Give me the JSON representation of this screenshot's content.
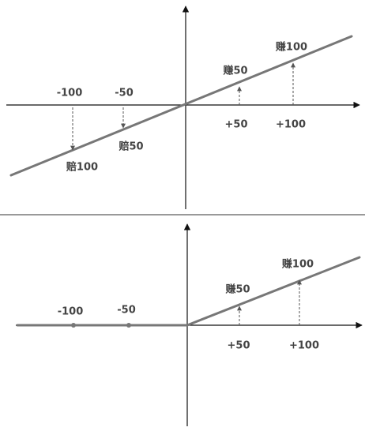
{
  "top": {
    "x_labels": [
      "-100",
      "-50",
      "+50",
      "+100"
    ],
    "outcomes": [
      "赔100",
      "赔50",
      "赚50",
      "赚100"
    ]
  },
  "bottom": {
    "x_labels": [
      "-100",
      "-50",
      "+50",
      "+100"
    ],
    "outcomes": [
      "赚50",
      "赚100"
    ]
  }
}
